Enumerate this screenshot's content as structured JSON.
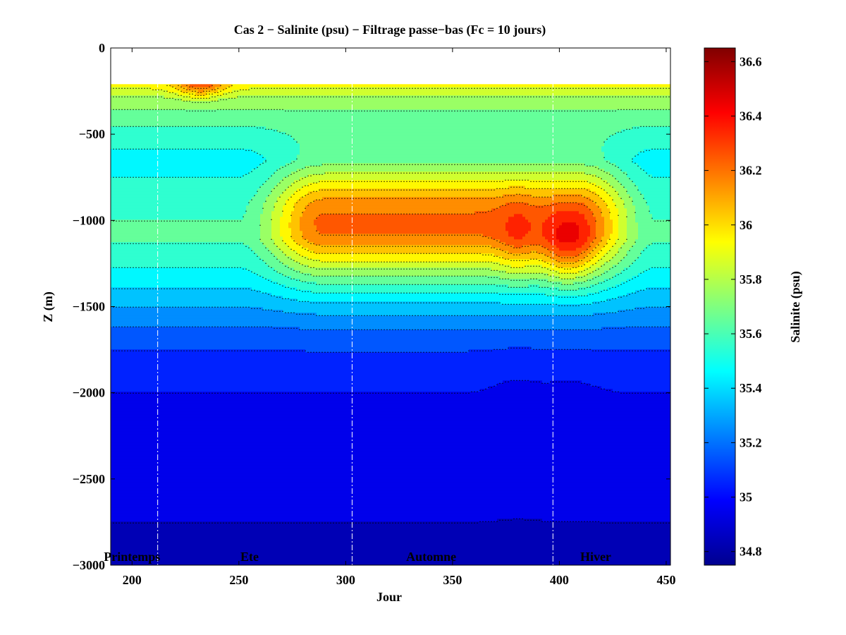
{
  "chart_data": {
    "type": "heatmap",
    "subtype": "filled-contour",
    "title": "Cas 2 − Salinite (psu) − Filtrage passe−bas (Fc = 10 jours)",
    "xlabel": "Jour",
    "ylabel": "Z (m)",
    "colorbar_label": "Salinite (psu)",
    "xlim": [
      190,
      452
    ],
    "ylim": [
      -3000,
      0
    ],
    "data_top_depth": -210,
    "x_ticks": [
      200,
      250,
      300,
      350,
      400,
      450
    ],
    "y_ticks": [
      0,
      -500,
      -1000,
      -1500,
      -2000,
      -2500,
      -3000
    ],
    "colorbar_range": [
      34.75,
      36.65
    ],
    "colorbar_ticks": [
      34.8,
      35,
      35.2,
      35.4,
      35.6,
      35.8,
      36,
      36.2,
      36.4,
      36.6
    ],
    "colormap": "jet",
    "season_boundaries": [
      212,
      303,
      397
    ],
    "season_labels": [
      {
        "text": "Printemps",
        "x": 200
      },
      {
        "text": "Ete",
        "x": 255
      },
      {
        "text": "Automne",
        "x": 340
      },
      {
        "text": "Hiver",
        "x": 417
      }
    ],
    "salinity_profile_psu": [
      {
        "z": -210,
        "s": 35.95
      },
      {
        "z": -300,
        "s": 35.75
      },
      {
        "z": -450,
        "s": 35.6
      },
      {
        "z": -650,
        "s": 35.45
      },
      {
        "z": -900,
        "s": 35.58
      },
      {
        "z": -1100,
        "s": 35.62
      },
      {
        "z": -1300,
        "s": 35.48
      },
      {
        "z": -1500,
        "s": 35.3
      },
      {
        "z": -1700,
        "s": 35.12
      },
      {
        "z": -2000,
        "s": 35.0
      },
      {
        "z": -2500,
        "s": 34.92
      },
      {
        "z": -3000,
        "s": 34.88
      }
    ],
    "salty_core": {
      "x_range": [
        250,
        445
      ],
      "z_range": [
        -650,
        -1350
      ],
      "peak_s": 36.25,
      "peak_x": 404,
      "peak_z": -1150
    },
    "grid": false,
    "legend": "none"
  }
}
